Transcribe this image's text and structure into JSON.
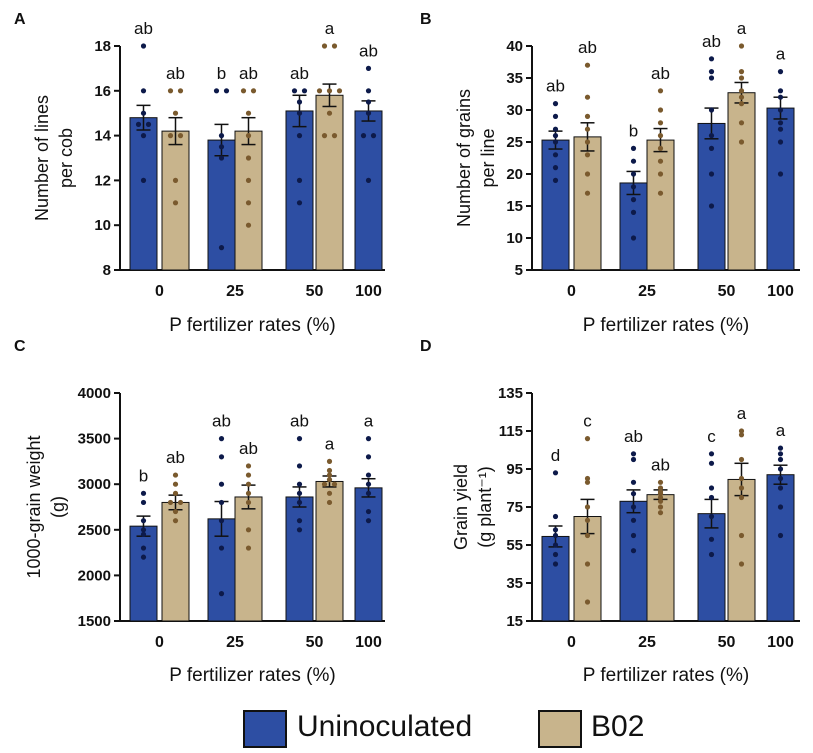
{
  "colors": {
    "uninoculated": "#2d4ea3",
    "b02": "#c8b48c",
    "uninoculated_dot": "#0d1a4a",
    "b02_dot": "#7a5a2e"
  },
  "legend": {
    "items": [
      "Uninoculated",
      "B02"
    ]
  },
  "chart_data": [
    {
      "panel": "A",
      "type": "bar",
      "categories": [
        "0",
        "25",
        "50",
        "100"
      ],
      "xlabel": "P fertilizer rates (%)",
      "ylabel_lines": [
        "Number of lines",
        "per cob"
      ],
      "ylim": [
        8,
        18
      ],
      "yticks": [
        8,
        10,
        12,
        14,
        16,
        18
      ],
      "series": [
        {
          "name": "Uninoculated",
          "values": [
            14.8,
            13.8,
            15.1,
            15.1
          ],
          "errors": [
            0.55,
            0.7,
            0.7,
            0.45
          ],
          "letters": [
            "ab",
            "b",
            "ab",
            "ab"
          ],
          "points": [
            [
              18,
              16,
              15,
              14.5,
              14.5,
              14,
              12
            ],
            [
              16,
              16,
              14,
              13.5,
              13,
              9
            ],
            [
              16,
              16,
              15.5,
              15,
              14,
              12,
              11
            ],
            [
              17,
              16,
              15.5,
              15,
              14,
              14,
              12
            ]
          ]
        },
        {
          "name": "B02",
          "values": [
            14.2,
            14.2,
            15.8,
            null
          ],
          "errors": [
            0.6,
            0.6,
            0.5,
            null
          ],
          "letters": [
            "ab",
            "ab",
            "a",
            null
          ],
          "points": [
            [
              16,
              16,
              15,
              14,
              14,
              12,
              11
            ],
            [
              16,
              16,
              15,
              14,
              13,
              12,
              11,
              10
            ],
            [
              18,
              18,
              16,
              16,
              16,
              15,
              14,
              14
            ],
            []
          ]
        }
      ]
    },
    {
      "panel": "B",
      "type": "bar",
      "categories": [
        "0",
        "25",
        "50",
        "100"
      ],
      "xlabel": "P fertilizer rates (%)",
      "ylabel_lines": [
        "Number of grains",
        "per line"
      ],
      "ylim": [
        5,
        40
      ],
      "yticks": [
        5,
        10,
        15,
        20,
        25,
        30,
        35,
        40
      ],
      "series": [
        {
          "name": "Uninoculated",
          "values": [
            25.3,
            18.6,
            27.9,
            30.3
          ],
          "errors": [
            1.4,
            1.8,
            2.4,
            1.7
          ],
          "letters": [
            "ab",
            "b",
            "ab",
            "a"
          ],
          "points": [
            [
              31,
              29,
              27,
              26,
              25,
              23,
              21,
              19
            ],
            [
              24,
              22,
              20,
              18,
              16,
              14,
              10
            ],
            [
              38,
              36,
              35,
              30,
              26,
              24,
              20,
              15
            ],
            [
              36,
              33,
              32,
              30,
              28,
              27,
              25,
              20
            ]
          ]
        },
        {
          "name": "B02",
          "values": [
            25.8,
            25.3,
            32.7,
            null
          ],
          "errors": [
            2.2,
            1.8,
            1.6,
            null
          ],
          "letters": [
            "ab",
            "ab",
            "a",
            null
          ],
          "points": [
            [
              37,
              32,
              29,
              27,
              25,
              23,
              20,
              17
            ],
            [
              33,
              30,
              28,
              26,
              24,
              22,
              20,
              17
            ],
            [
              40,
              36,
              35,
              33,
              32,
              31,
              28,
              25
            ],
            []
          ]
        }
      ]
    },
    {
      "panel": "C",
      "type": "bar",
      "categories": [
        "0",
        "25",
        "50",
        "100"
      ],
      "xlabel": "P fertilizer rates (%)",
      "ylabel_lines": [
        "1000-grain weight",
        "(g)"
      ],
      "ylim": [
        1500,
        4000
      ],
      "yticks": [
        1500,
        2000,
        2500,
        3000,
        3500,
        4000
      ],
      "series": [
        {
          "name": "Uninoculated",
          "values": [
            2540,
            2620,
            2860,
            2960
          ],
          "errors": [
            110,
            190,
            110,
            100
          ],
          "letters": [
            "b",
            "ab",
            "ab",
            "a"
          ],
          "points": [
            [
              2900,
              2800,
              2600,
              2500,
              2450,
              2300,
              2200
            ],
            [
              3500,
              3300,
              3000,
              2800,
              2600,
              2300,
              1800
            ],
            [
              3500,
              3200,
              3000,
              2900,
              2800,
              2600,
              2500
            ],
            [
              3500,
              3300,
              3100,
              3000,
              2900,
              2700,
              2600
            ]
          ]
        },
        {
          "name": "B02",
          "values": [
            2800,
            2860,
            3030,
            null
          ],
          "errors": [
            80,
            130,
            60,
            null
          ],
          "letters": [
            "ab",
            "ab",
            "a",
            null
          ],
          "points": [
            [
              3100,
              3000,
              2900,
              2800,
              2800,
              2700,
              2600
            ],
            [
              3200,
              3100,
              3000,
              2900,
              2800,
              2500,
              2300
            ],
            [
              3250,
              3150,
              3100,
              3050,
              3000,
              3000,
              2900,
              2800
            ],
            []
          ]
        }
      ]
    },
    {
      "panel": "D",
      "type": "bar",
      "categories": [
        "0",
        "25",
        "50",
        "100"
      ],
      "xlabel": "P fertilizer rates (%)",
      "ylabel_lines": [
        "Grain yield",
        "(g plant⁻¹)"
      ],
      "ylim": [
        15,
        135
      ],
      "yticks": [
        15,
        35,
        55,
        75,
        95,
        115,
        135
      ],
      "series": [
        {
          "name": "Uninoculated",
          "values": [
            59.5,
            78,
            71.5,
            92
          ],
          "errors": [
            5.5,
            6,
            7.5,
            5
          ],
          "letters": [
            "d",
            "ab",
            "c",
            "a"
          ],
          "points": [
            [
              93,
              70,
              63,
              60,
              55,
              50,
              45
            ],
            [
              103,
              100,
              88,
              82,
              75,
              68,
              60,
              52
            ],
            [
              103,
              98,
              85,
              80,
              70,
              58,
              50
            ],
            [
              106,
              103,
              100,
              95,
              90,
              85,
              75,
              60
            ]
          ]
        },
        {
          "name": "B02",
          "values": [
            70,
            81.5,
            89.5,
            null
          ],
          "errors": [
            9,
            2.5,
            8.5,
            null
          ],
          "letters": [
            "c",
            "ab",
            "a",
            null
          ],
          "points": [
            [
              111,
              90,
              88,
              75,
              68,
              60,
              45,
              25
            ],
            [
              88,
              85,
              83,
              82,
              80,
              78,
              75,
              72
            ],
            [
              115,
              113,
              100,
              90,
              85,
              80,
              60,
              45
            ],
            []
          ]
        }
      ]
    }
  ]
}
